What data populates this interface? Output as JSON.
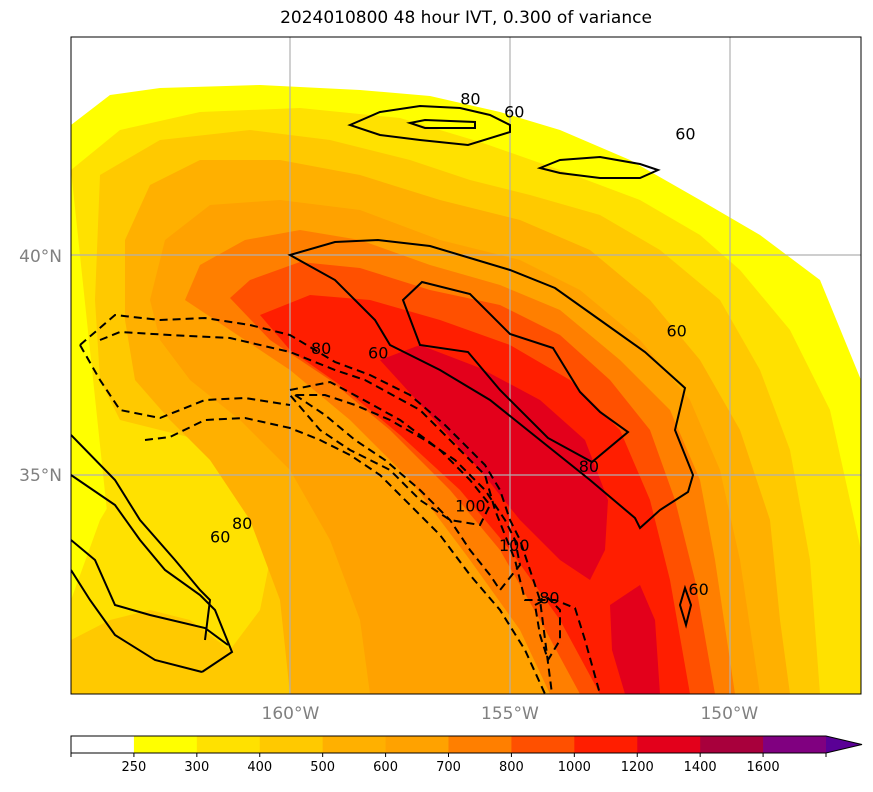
{
  "title": "2024010800 48 hour IVT, 0.300 of variance",
  "lat_labels": [
    {
      "lat": 40,
      "text": "40°N"
    },
    {
      "lat": 35,
      "text": "35°N"
    }
  ],
  "lon_labels": [
    {
      "lon": -160,
      "text": "160°W"
    },
    {
      "lon": -155,
      "text": "155°W"
    },
    {
      "lon": -150,
      "text": "150°W"
    }
  ],
  "map_extent": {
    "lon_min": -165,
    "lon_max": -147,
    "lat_min": 30,
    "lat_max": 45
  },
  "contour_labels": [
    {
      "text": "80",
      "lon": -161.1,
      "lat": 33.9
    },
    {
      "text": "60",
      "lon": -161.6,
      "lat": 33.6
    },
    {
      "text": "60",
      "lon": -158,
      "lat": 37.8
    },
    {
      "text": "80",
      "lon": -159.3,
      "lat": 37.9
    },
    {
      "text": "100",
      "lon": -155.9,
      "lat": 34.3
    },
    {
      "text": "100",
      "lon": -154.9,
      "lat": 33.4
    },
    {
      "text": "80",
      "lon": -154.1,
      "lat": 32.2
    },
    {
      "text": "60",
      "lon": -150.7,
      "lat": 32.4
    },
    {
      "text": "80",
      "lon": -153.2,
      "lat": 35.2
    },
    {
      "text": "60",
      "lon": -151.2,
      "lat": 38.3
    },
    {
      "text": "80",
      "lon": -155.9,
      "lat": 43.6
    },
    {
      "text": "60",
      "lon": -154.9,
      "lat": 43.3
    },
    {
      "text": "60",
      "lon": -151.0,
      "lat": 42.8
    }
  ],
  "colorbar": {
    "ticks": [
      "250",
      "300",
      "400",
      "500",
      "600",
      "700",
      "800",
      "1000",
      "1200",
      "1400",
      "1600"
    ],
    "colors": [
      "#ffffff",
      "#ffff00",
      "#ffe100",
      "#ffc900",
      "#ffb000",
      "#ffa200",
      "#ff7f00",
      "#ff5000",
      "#ff1e00",
      "#e3001b",
      "#a8003c",
      "#800080",
      "#5a0096"
    ],
    "extend": "max"
  }
}
